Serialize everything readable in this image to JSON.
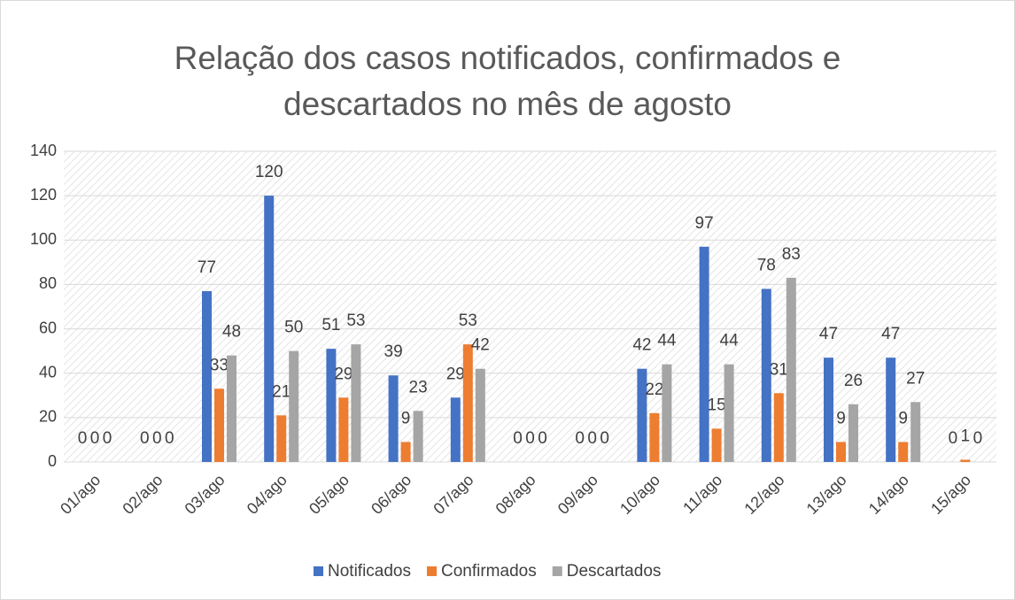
{
  "chart_data": {
    "type": "bar",
    "title": "Relação dos casos notificados, confirmados e descartados no mês de agosto",
    "categories": [
      "01/ago",
      "02/ago",
      "03/ago",
      "04/ago",
      "05/ago",
      "06/ago",
      "07/ago",
      "08/ago",
      "09/ago",
      "10/ago",
      "11/ago",
      "12/ago",
      "13/ago",
      "14/ago",
      "15/ago"
    ],
    "series": [
      {
        "name": "Notificados",
        "color": "#4472c4",
        "values": [
          0,
          0,
          77,
          120,
          51,
          39,
          29,
          0,
          0,
          42,
          97,
          78,
          47,
          47,
          0
        ]
      },
      {
        "name": "Confirmados",
        "color": "#ed7d31",
        "values": [
          0,
          0,
          33,
          21,
          29,
          9,
          53,
          0,
          0,
          22,
          15,
          31,
          9,
          9,
          1
        ]
      },
      {
        "name": "Descartados",
        "color": "#a5a5a5",
        "values": [
          0,
          0,
          48,
          50,
          53,
          23,
          42,
          0,
          0,
          44,
          44,
          83,
          26,
          27,
          0
        ]
      }
    ],
    "ylim": [
      0,
      140
    ],
    "yticks": [
      0,
      20,
      40,
      60,
      80,
      100,
      120,
      140
    ],
    "grid": true,
    "legend": "bottom"
  }
}
